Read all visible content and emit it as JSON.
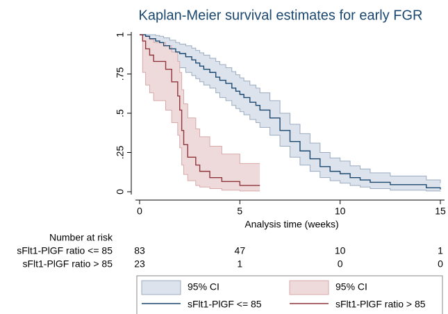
{
  "chart_data": {
    "type": "km",
    "title": "Kaplan-Meier survival estimates for early FGR",
    "x_label": "Analysis time (weeks)",
    "xlim": [
      0,
      15
    ],
    "ylim": [
      0,
      1
    ],
    "xticks": [
      0,
      5,
      10,
      15
    ],
    "yticks": [
      0,
      {
        "value": 0.25,
        "label": ".25"
      },
      {
        "value": 0.5,
        "label": ".5"
      },
      {
        "value": 0.75,
        "label": ".75"
      },
      1
    ],
    "series": [
      {
        "name": "95% CI",
        "kind": "band",
        "color": "#dde3ec",
        "edge": "#9aabc0",
        "x": [
          0,
          0.3,
          0.5,
          0.8,
          1.0,
          1.2,
          1.5,
          1.8,
          2.0,
          2.3,
          2.6,
          2.8,
          3.0,
          3.2,
          3.5,
          3.8,
          4.0,
          4.3,
          4.6,
          4.8,
          5.0,
          5.2,
          5.5,
          5.8,
          6.0,
          6.5,
          7.0,
          7.5,
          8.0,
          8.5,
          9.0,
          9.5,
          10.0,
          10.5,
          11.0,
          11.5,
          12.5,
          14.3,
          15.0
        ],
        "lower": [
          1,
          0.93,
          0.91,
          0.89,
          0.87,
          0.85,
          0.82,
          0.8,
          0.79,
          0.76,
          0.74,
          0.72,
          0.7,
          0.68,
          0.66,
          0.63,
          0.6,
          0.58,
          0.55,
          0.53,
          0.51,
          0.49,
          0.46,
          0.44,
          0.41,
          0.36,
          0.29,
          0.22,
          0.17,
          0.13,
          0.09,
          0.07,
          0.055,
          0.04,
          0.03,
          0.02,
          0.01,
          0.005,
          0.002
        ],
        "upper": [
          1,
          1,
          1,
          0.995,
          0.99,
          0.98,
          0.965,
          0.95,
          0.94,
          0.93,
          0.915,
          0.9,
          0.885,
          0.87,
          0.85,
          0.83,
          0.81,
          0.79,
          0.765,
          0.745,
          0.725,
          0.705,
          0.68,
          0.66,
          0.63,
          0.58,
          0.5,
          0.43,
          0.37,
          0.31,
          0.25,
          0.215,
          0.195,
          0.165,
          0.145,
          0.12,
          0.1,
          0.075,
          0.055
        ]
      },
      {
        "name": "95% CI",
        "kind": "band",
        "color": "#eedada",
        "edge": "#d9a8a8",
        "x": [
          0,
          0.15,
          0.3,
          0.5,
          0.7,
          1.3,
          1.6,
          1.9,
          2.0,
          2.1,
          2.2,
          2.4,
          2.8,
          3.0,
          3.5,
          4.1,
          5.0,
          6.0
        ],
        "lower": [
          1,
          0.76,
          0.68,
          0.63,
          0.58,
          0.52,
          0.44,
          0.36,
          0.28,
          0.17,
          0.11,
          0.07,
          0.04,
          0.03,
          0.02,
          0.01,
          0.005,
          0.005
        ],
        "upper": [
          1,
          1,
          0.99,
          0.97,
          0.95,
          0.93,
          0.89,
          0.83,
          0.76,
          0.65,
          0.56,
          0.47,
          0.4,
          0.35,
          0.29,
          0.24,
          0.18,
          0.18
        ]
      },
      {
        "name": "sFlt1-PlGF <= 85",
        "kind": "line",
        "color": "#1a476f",
        "x": [
          0,
          0.3,
          0.5,
          0.8,
          1.0,
          1.2,
          1.5,
          1.8,
          2.0,
          2.3,
          2.6,
          2.8,
          3.0,
          3.2,
          3.5,
          3.8,
          4.0,
          4.3,
          4.6,
          4.8,
          5.0,
          5.2,
          5.5,
          5.8,
          6.0,
          6.5,
          7.0,
          7.5,
          8.0,
          8.5,
          9.0,
          9.5,
          10.0,
          10.5,
          11.0,
          11.5,
          12.5,
          14.3,
          15.0
        ],
        "values": [
          1,
          0.99,
          0.975,
          0.96,
          0.95,
          0.93,
          0.91,
          0.89,
          0.88,
          0.86,
          0.84,
          0.82,
          0.8,
          0.78,
          0.76,
          0.73,
          0.71,
          0.69,
          0.66,
          0.64,
          0.62,
          0.6,
          0.57,
          0.55,
          0.52,
          0.47,
          0.39,
          0.32,
          0.26,
          0.21,
          0.16,
          0.13,
          0.115,
          0.09,
          0.075,
          0.06,
          0.045,
          0.025,
          0.015
        ]
      },
      {
        "name": "sFlt1-PlGF ratio > 85",
        "kind": "line",
        "color": "#90353b",
        "x": [
          0,
          0.15,
          0.3,
          0.5,
          0.7,
          1.3,
          1.6,
          1.9,
          2.0,
          2.1,
          2.2,
          2.4,
          2.8,
          3.0,
          3.5,
          4.1,
          5.0,
          6.0
        ],
        "values": [
          1,
          0.96,
          0.91,
          0.87,
          0.83,
          0.78,
          0.7,
          0.61,
          0.52,
          0.39,
          0.3,
          0.22,
          0.17,
          0.13,
          0.09,
          0.065,
          0.04,
          0.04
        ]
      }
    ],
    "risk_table": {
      "title": "Number at risk",
      "times": [
        0,
        5,
        10,
        15
      ],
      "rows": [
        {
          "label": "sFlt1-PlGF ratio <= 85",
          "counts": [
            83,
            47,
            10,
            1
          ]
        },
        {
          "label": "sFlt1-PlGF ratio > 85",
          "counts": [
            23,
            1,
            0,
            0
          ]
        }
      ]
    }
  }
}
